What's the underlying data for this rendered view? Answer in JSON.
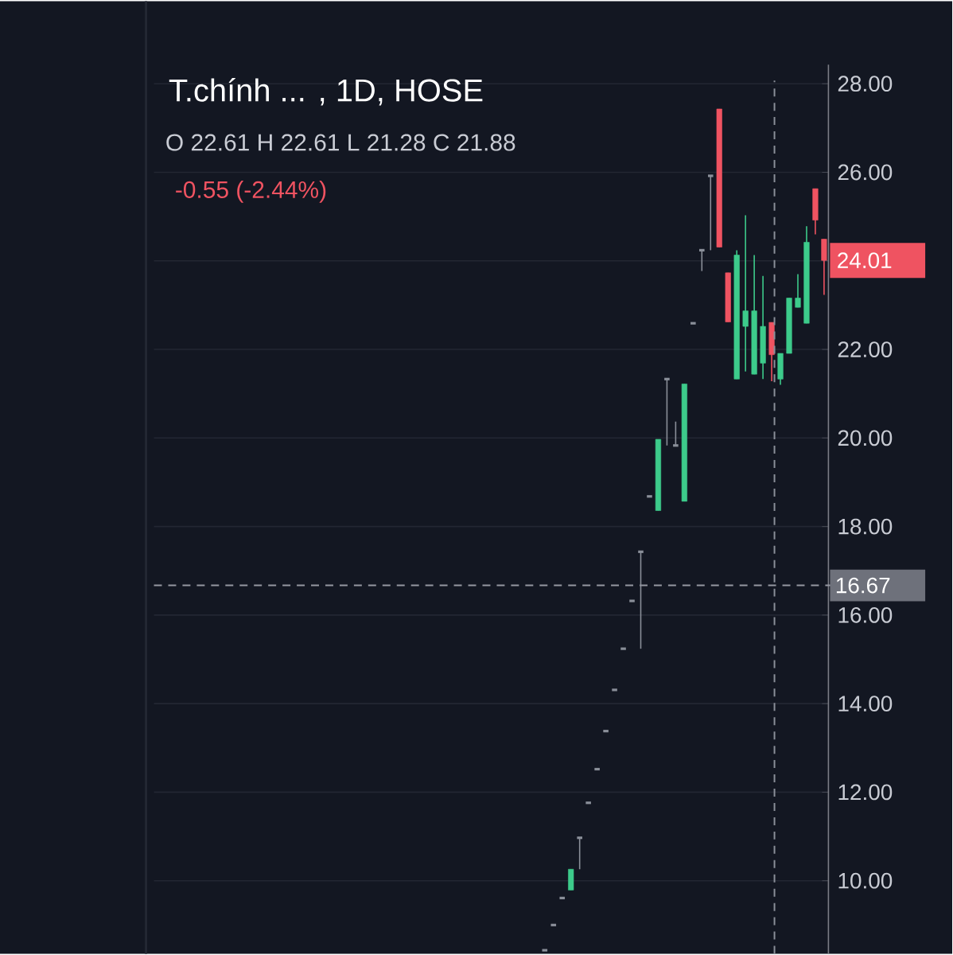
{
  "chart_data": {
    "type": "candlestick",
    "title": "T.chính ... , 1D, HOSE",
    "annotations": [
      "O 22.61 H 22.61 L 21.28 C 21.88",
      "-0.55 (-2.44%)",
      "24.01"
    ],
    "categories": [
      null,
      null,
      null,
      null,
      null,
      null,
      null,
      null,
      null,
      null,
      null,
      null,
      null,
      null,
      null,
      null,
      null,
      null,
      null,
      null,
      null,
      null,
      null,
      null,
      null,
      null,
      null,
      null,
      null,
      null,
      null,
      null,
      null
    ],
    "ohlc": [
      [
        8.43,
        8.43,
        8.43,
        8.43
      ],
      [
        9.0,
        9.0,
        9.0,
        9.0
      ],
      [
        9.61,
        9.61,
        9.61,
        9.61
      ],
      [
        9.79,
        10.26,
        9.79,
        10.26
      ],
      [
        10.97,
        10.97,
        10.26,
        10.97
      ],
      [
        11.76,
        11.76,
        11.76,
        11.76
      ],
      [
        12.52,
        12.52,
        12.52,
        12.52
      ],
      [
        13.38,
        13.38,
        13.38,
        13.38
      ],
      [
        14.31,
        14.31,
        14.31,
        14.31
      ],
      [
        15.24,
        15.24,
        15.24,
        15.24
      ],
      [
        16.32,
        16.32,
        16.32,
        16.32
      ],
      [
        17.43,
        17.43,
        15.24,
        17.43
      ],
      [
        18.68,
        18.68,
        18.68,
        18.68
      ],
      [
        18.36,
        19.97,
        18.36,
        19.97
      ],
      [
        21.33,
        21.33,
        19.83,
        21.33
      ],
      [
        19.83,
        20.37,
        19.83,
        19.83
      ],
      [
        18.57,
        21.22,
        18.57,
        21.22
      ],
      [
        22.59,
        22.59,
        22.59,
        22.59
      ],
      [
        24.24,
        24.24,
        23.77,
        24.24
      ],
      [
        25.92,
        25.92,
        24.24,
        25.92
      ],
      [
        27.43,
        27.43,
        24.31,
        24.31
      ],
      [
        23.73,
        23.73,
        22.62,
        22.62
      ],
      [
        21.33,
        24.24,
        21.33,
        24.13
      ],
      [
        22.52,
        25.03,
        21.5,
        22.87
      ],
      [
        21.44,
        24.13,
        21.44,
        22.87
      ],
      [
        21.69,
        23.66,
        21.33,
        22.52
      ],
      [
        22.61,
        22.61,
        21.28,
        21.88
      ],
      [
        21.33,
        21.91,
        21.2,
        21.91
      ],
      [
        21.91,
        23.16,
        21.91,
        23.16
      ],
      [
        22.95,
        23.7,
        22.95,
        23.16
      ],
      [
        22.59,
        24.78,
        22.59,
        24.42
      ],
      [
        25.63,
        25.63,
        24.6,
        24.92
      ],
      [
        24.49,
        24.49,
        23.23,
        24.01
      ]
    ],
    "ylim": [
      8.35,
      28.43
    ],
    "yticks": [
      {
        "value": 10,
        "label": "10.00"
      },
      {
        "value": 12,
        "label": "12.00"
      },
      {
        "value": 14,
        "label": "14.00"
      },
      {
        "value": 16,
        "label": "16.00"
      },
      {
        "value": 18,
        "label": "18.00"
      },
      {
        "value": 20,
        "label": "20.00"
      },
      {
        "value": 22,
        "label": "22.00"
      },
      {
        "value": 24,
        "label": null
      },
      {
        "value": 26,
        "label": "26.00"
      },
      {
        "value": 28,
        "label": "28.00"
      }
    ],
    "grid": "y",
    "ref_lines": [
      {
        "axis": "y",
        "value": 16.67,
        "label": "16.67",
        "line_style": "dashed",
        "color": "#9598a1"
      }
    ]
  }
}
